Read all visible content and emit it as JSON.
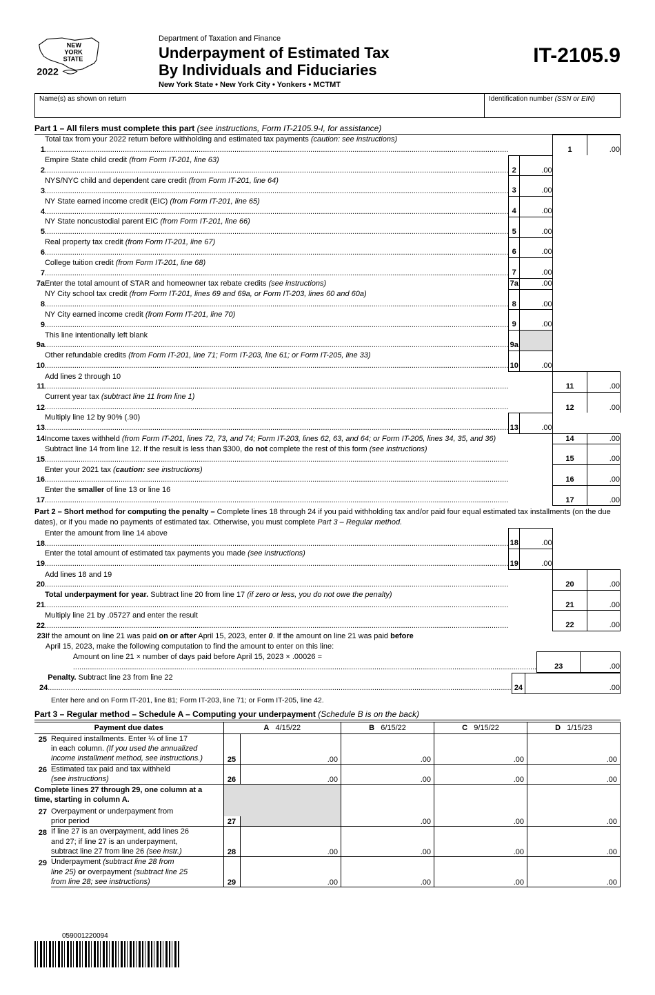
{
  "header": {
    "year": "2022",
    "dept": "Department of Taxation and Finance",
    "title1": "Underpayment of Estimated Tax",
    "title2": "By Individuals and Fiduciaries",
    "subtitle": "New York State • New York City • Yonkers • MCTMT",
    "form_code": "IT-2105.9",
    "name_label": "Name(s) as shown on return",
    "id_label": "Identification number"
  },
  "part1": {
    "title": "Part 1 – All filers must complete this part",
    "hint": "(see instructions, Form IT-2105.9-I, for assistance)",
    "rows": [
      {
        "n": "1",
        "t": "Total tax from your 2022 return before withholding and estimated tax payments ",
        "i": "(caution: see instructions)",
        "rn": "1",
        "rv": ".00"
      },
      {
        "n": "2",
        "t": "Empire State child credit ",
        "i": "(from Form IT-201, line 63)",
        "mn": "2",
        "mv": ".00"
      },
      {
        "n": "3",
        "t": "NYS/NYC child and dependent care credit ",
        "i": "(from Form IT-201, line 64)",
        "mn": "3",
        "mv": ".00"
      },
      {
        "n": "4",
        "t": "NY State earned income credit (EIC) ",
        "i": "(from Form IT-201, line 65)",
        "mn": "4",
        "mv": ".00"
      },
      {
        "n": "5",
        "t": "NY State noncustodial parent EIC ",
        "i": "(from Form IT-201, line 66)",
        "mn": "5",
        "mv": ".00"
      },
      {
        "n": "6",
        "t": "Real property tax credit ",
        "i": "(from Form IT-201, line 67)",
        "mn": "6",
        "mv": ".00"
      },
      {
        "n": "7",
        "t": "College tuition credit ",
        "i": "(from Form IT-201, line 68)",
        "mn": "7",
        "mv": ".00"
      },
      {
        "n": "7a",
        "t": "Enter the total amount of STAR and homeowner tax rebate credits ",
        "i": "(see instructions)",
        "mn": "7a",
        "mv": ".00",
        "nodots": true
      },
      {
        "n": "8",
        "t": "NY City school tax credit ",
        "i": "(from Form IT-201, lines 69 and 69a, or Form IT-203, lines 60 and 60a)",
        "mn": "8",
        "mv": ".00"
      },
      {
        "n": "9",
        "t": "NY City earned income credit ",
        "i": "(from Form IT-201, line 70)",
        "mn": "9",
        "mv": ".00"
      },
      {
        "n": "9a",
        "t": "This line intentionally left blank ",
        "mn": "9a",
        "mv": "",
        "shade": true
      },
      {
        "n": "10",
        "t": "Other refundable credits ",
        "i": "(from Form IT-201, line 71; Form IT-203, line 61; or Form IT-205, line 33)",
        "mn": "10",
        "mv": ".00",
        "mbot": true
      },
      {
        "n": "11",
        "t": "Add lines 2 through 10 ",
        "rn": "11",
        "rv": ".00"
      },
      {
        "n": "12",
        "t": "Current year tax ",
        "i": "(subtract line 11 from line 1)",
        "rn": "12",
        "rv": ".00"
      },
      {
        "n": "13",
        "t": "Multiply line 12 by 90% (.90) ",
        "mn": "13",
        "mv": ".00",
        "mbot": true
      },
      {
        "n": "14",
        "t": "Income taxes withheld ",
        "i": "(from Form IT-201, lines 72, 73, and 74; Form IT-203, lines 62, 63, and 64; or Form IT-205, lines 34, 35, and 36)",
        "rn": "14",
        "rv": ".00",
        "nodots": true
      },
      {
        "n": "15",
        "t": "Subtract line 14 from line 12. If the result is less than $300, <b>do not</b> complete the rest of this form ",
        "i": "(see instructions)",
        "rn": "15",
        "rv": ".00"
      },
      {
        "n": "16",
        "t": "Enter your 2021 tax ",
        "i": "(<b>caution:</b> see instructions)",
        "rn": "16",
        "rv": ".00"
      },
      {
        "n": "17",
        "t": "Enter the <b>smaller</b> of line 13 or line 16 ",
        "rn": "17",
        "rv": ".00",
        "rbot": true
      }
    ]
  },
  "part2": {
    "title": "Part 2 – Short method for computing the penalty –",
    "text": " Complete lines 18 through 24 if you paid withholding tax and/or paid four equal estimated tax installments (on the due dates), or if you made no payments of estimated tax. Otherwise, you must complete ",
    "text_i": "Part 3 – Regular method.",
    "rows": [
      {
        "n": "18",
        "t": "Enter the amount from line 14 above ",
        "mn": "18",
        "mv": ".00"
      },
      {
        "n": "19",
        "t": "Enter the total amount of estimated tax payments you made ",
        "i": "(see instructions)",
        "mn": "19",
        "mv": ".00",
        "mbot": true
      },
      {
        "n": "20",
        "t": "Add lines 18 and 19 ",
        "rn": "20",
        "rv": ".00"
      },
      {
        "n": "21",
        "t": "<b>Total underpayment for year.</b> Subtract line 20 from line 17 ",
        "i": "(if zero or less, you do not owe the penalty)",
        "rn": "21",
        "rv": ".00"
      },
      {
        "n": "22",
        "t": "Multiply line 21 by .05727 and enter the result ",
        "rn": "22",
        "rv": ".00",
        "rbot": true
      }
    ],
    "row23a": "If the amount on line 21 was paid <b>on or after</b> April 15, 2023, enter <b><i>0</i></b>. If the amount on line 21 was paid <b>before</b>",
    "row23b": "April 15, 2023, make the following computation to find the amount to enter on this line:",
    "row23c": "Amount on line 21  ×  number of days paid before April 15, 2023  ×  .00026  = ",
    "row24": {
      "n": "24",
      "t": "<b>Penalty.</b> Subtract line 23 from line 22 ",
      "mn": "24",
      "mv": ".00",
      "mbot": true
    },
    "note": "Enter here and on Form IT-201, line 81; Form IT-203, line 71; or Form IT-205, line 42."
  },
  "part3": {
    "title": "Part 3 – Regular method – Schedule A – Computing your underpayment",
    "hint": "(Schedule B is on the back)",
    "hdr": {
      "dates": "Payment due dates",
      "A": "A",
      "Ad": "4/15/22",
      "B": "B",
      "Bd": "6/15/22",
      "C": "C",
      "Cd": "9/15/22",
      "D": "D",
      "Dd": "1/15/23"
    },
    "r25": {
      "n": "25",
      "a": "Required installments. Enter ¼ of line 17",
      "b": "in each column. ",
      "bi": "(If you used the annualized",
      "c": "income installment method, see instructions.)",
      "mn": "25",
      "v": ".00"
    },
    "r26": {
      "n": "26",
      "a": "Estimated tax paid and tax withheld",
      "b": "(see instructions)",
      "mn": "26",
      "v": ".00"
    },
    "note": "Complete lines 27 through 29, one column at a time, starting in column A.",
    "r27": {
      "n": "27",
      "a": "Overpayment or underpayment from",
      "b": "prior period",
      "mn": "27",
      "v": ".00"
    },
    "r28": {
      "n": "28",
      "a": "If line 27 is an overpayment, add lines 26",
      "b": "and 27; if line 27 is an underpayment,",
      "c": "subtract line 27 from line 26 ",
      "ci": "(see instr.)",
      "mn": "28",
      "v": ".00"
    },
    "r29": {
      "n": "29",
      "a": "Underpayment ",
      "ai": "(subtract line 28 from",
      "b": "line 25)",
      "b2": " <b>or</b> overpayment ",
      "bi": "(subtract line 25",
      "c": "from line 28; see instructions)",
      "mn": "29",
      "v": ".00"
    }
  },
  "barcode": "059001220094"
}
